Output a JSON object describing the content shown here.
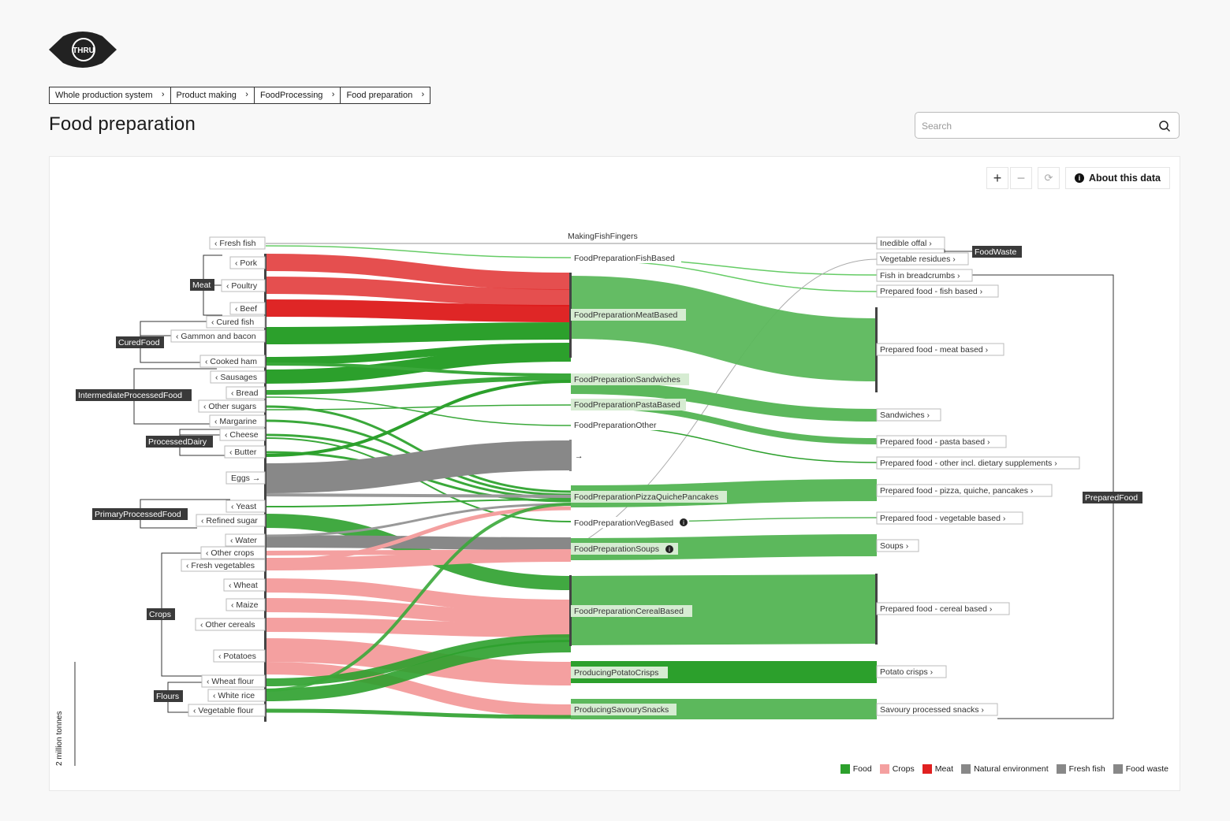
{
  "logo": {
    "text": "THRU"
  },
  "breadcrumb": [
    {
      "label": "Whole production system"
    },
    {
      "label": "Product making"
    },
    {
      "label": "FoodProcessing"
    },
    {
      "label": "Food preparation"
    }
  ],
  "page_title": "Food preparation",
  "search": {
    "placeholder": "Search"
  },
  "toolbar": {
    "zoom_in": "+",
    "zoom_out": "−",
    "reset": "⟳",
    "about_label": "About this data"
  },
  "scale_label": "2 million tonnes",
  "legend": [
    {
      "label": "Food",
      "color": "#2ca02c"
    },
    {
      "label": "Crops",
      "color": "#f4a0a0"
    },
    {
      "label": "Meat",
      "color": "#e02020"
    },
    {
      "label": "Natural environment",
      "color": "#888888"
    },
    {
      "label": "Fresh fish",
      "color": "#888888"
    },
    {
      "label": "Food waste",
      "color": "#888888"
    }
  ],
  "diagram": {
    "groups": [
      "Meat",
      "CuredFood",
      "IntermediateProcessedFood",
      "ProcessedDairy",
      "PrimaryProcessedFood",
      "Crops",
      "Flours",
      "FoodWaste",
      "PreparedFood"
    ],
    "inputs": [
      "Fresh fish",
      "Pork",
      "Poultry",
      "Beef",
      "Cured fish",
      "Gammon and bacon",
      "Cooked ham",
      "Sausages",
      "Bread",
      "Other sugars",
      "Margarine",
      "Cheese",
      "Butter",
      "Eggs",
      "Yeast",
      "Refined sugar",
      "Water",
      "Other crops",
      "Fresh vegetables",
      "Wheat",
      "Maize",
      "Other cereals",
      "Potatoes",
      "Wheat flour",
      "White rice",
      "Vegetable flour"
    ],
    "processes": [
      "MakingFishFingers",
      "FoodPreparationFishBased",
      "FoodPreparationMeatBased",
      "FoodPreparationSandwiches",
      "FoodPreparationPastaBased",
      "FoodPreparationOther",
      "FoodPreparationPizzaQuichePancakes",
      "FoodPreparationVegBased",
      "FoodPreparationSoups",
      "FoodPreparationCerealBased",
      "ProducingPotatoCrisps",
      "ProducingSavourySnacks"
    ],
    "outputs": [
      "Inedible offal",
      "Vegetable residues",
      "Fish in breadcrumbs",
      "Prepared food - fish based",
      "Prepared food - meat based",
      "Sandwiches",
      "Prepared food - pasta based",
      "Prepared food - other incl. dietary supplements",
      "Prepared food - pizza, quiche, pancakes",
      "Prepared food - vegetable based",
      "Soups",
      "Prepared food - cereal based",
      "Potato crisps",
      "Savoury processed snacks"
    ]
  }
}
